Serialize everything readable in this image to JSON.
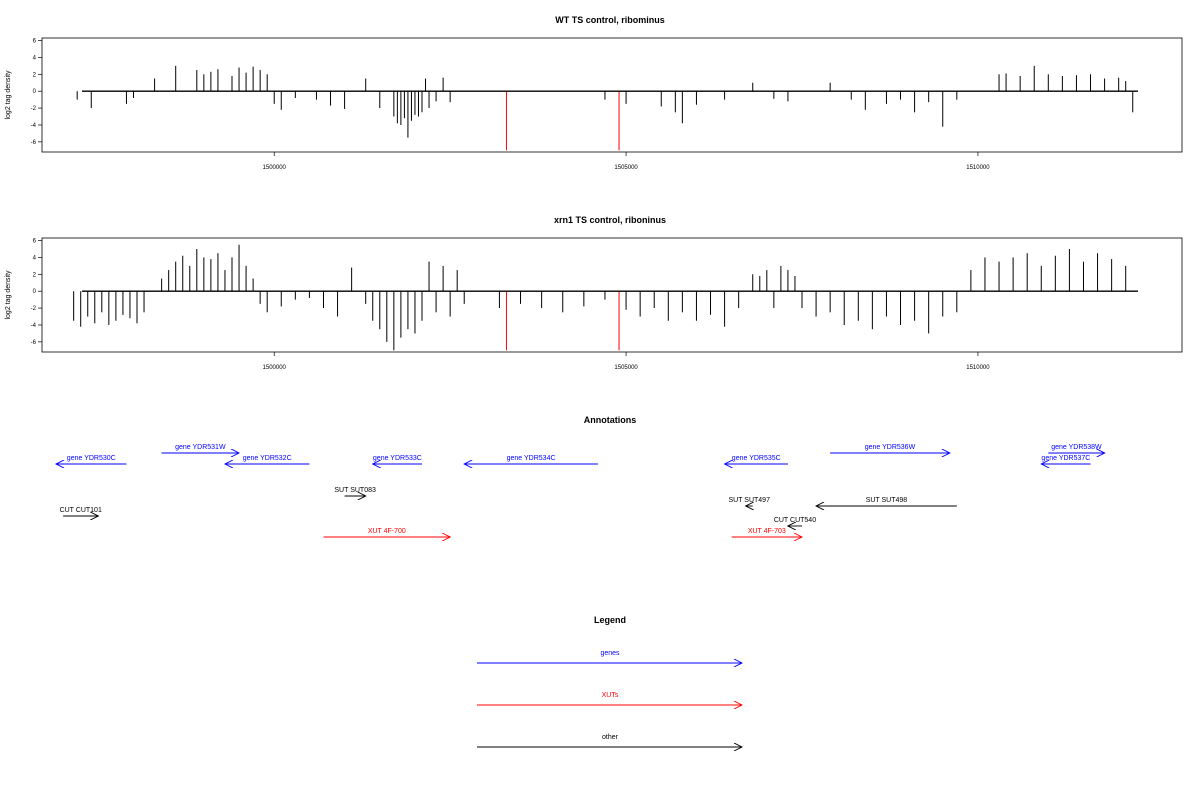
{
  "chart_data": [
    {
      "type": "bar",
      "title": "WT TS control, ribominus",
      "ylabel": "log2 tag density",
      "xlim": [
        1496700,
        1512900
      ],
      "ylim": [
        -7.2,
        6.3
      ],
      "yticks": [
        6,
        4,
        2,
        0,
        -2,
        -4,
        -6
      ],
      "xticks": [
        1500000,
        1505000,
        1510000
      ],
      "xtick_labels": [
        "1500000",
        "1505000",
        "1510000"
      ],
      "grid": false,
      "series": [
        {
          "color": "#000000",
          "x": [
            1497200,
            1497400,
            1497900,
            1498000,
            1498300,
            1498600,
            1498900,
            1499000,
            1499100,
            1499200,
            1499400,
            1499500,
            1499600,
            1499700,
            1499800,
            1499900,
            1500000,
            1500100,
            1500300,
            1500600,
            1500800,
            1501000,
            1501300,
            1501500,
            1501700,
            1501750,
            1501800,
            1501850,
            1501900,
            1501950,
            1502000,
            1502050,
            1502100,
            1502150,
            1502200,
            1502300,
            1502400,
            1502500,
            1504700,
            1505000,
            1505500,
            1505700,
            1505800,
            1506000,
            1506400,
            1506800,
            1507100,
            1507300,
            1507900,
            1508200,
            1508400,
            1508700,
            1508900,
            1509100,
            1509300,
            1509500,
            1509700,
            1510300,
            1510400,
            1510600,
            1510800,
            1511000,
            1511200,
            1511400,
            1511600,
            1511800,
            1512000,
            1512100,
            1512200
          ],
          "values": [
            -1.0,
            -2.0,
            -1.5,
            -0.8,
            1.5,
            3.0,
            2.5,
            2.0,
            2.3,
            2.6,
            1.8,
            2.8,
            2.2,
            2.9,
            2.5,
            2.0,
            -1.5,
            -2.2,
            -0.8,
            -1.0,
            -1.7,
            -2.1,
            1.5,
            -2.0,
            -3.0,
            -3.8,
            -4.0,
            -3.2,
            -5.5,
            -3.5,
            -2.8,
            -3.0,
            -2.5,
            1.5,
            -2.0,
            -1.2,
            1.6,
            -1.3,
            -1.0,
            -1.5,
            -1.8,
            -2.5,
            -3.8,
            -1.6,
            -1.0,
            1.0,
            -0.9,
            -1.2,
            1.0,
            -1.0,
            -2.2,
            -1.5,
            -1.0,
            -2.5,
            -1.3,
            -4.2,
            -1.0,
            2.0,
            2.1,
            1.8,
            3.0,
            2.0,
            1.8,
            1.9,
            2.0,
            1.5,
            1.6,
            1.2,
            -2.5
          ]
        },
        {
          "color": "#ff0000",
          "x": [
            1503300,
            1504900
          ],
          "values": [
            -7.0,
            -7.0
          ]
        }
      ]
    },
    {
      "type": "bar",
      "title": "xrn1 TS control, riboninus",
      "ylabel": "log2 tag density",
      "xlim": [
        1496700,
        1512900
      ],
      "ylim": [
        -7.2,
        6.3
      ],
      "yticks": [
        6,
        4,
        2,
        0,
        -2,
        -4,
        -6
      ],
      "xticks": [
        1500000,
        1505000,
        1510000
      ],
      "xtick_labels": [
        "1500000",
        "1505000",
        "1510000"
      ],
      "grid": false,
      "series": [
        {
          "color": "#000000",
          "x": [
            1497150,
            1497250,
            1497350,
            1497450,
            1497550,
            1497650,
            1497750,
            1497850,
            1497950,
            1498050,
            1498150,
            1498400,
            1498500,
            1498600,
            1498700,
            1498800,
            1498900,
            1499000,
            1499100,
            1499200,
            1499300,
            1499400,
            1499500,
            1499600,
            1499700,
            1499800,
            1499900,
            1500100,
            1500300,
            1500500,
            1500700,
            1500900,
            1501100,
            1501300,
            1501400,
            1501500,
            1501600,
            1501700,
            1501800,
            1501900,
            1502000,
            1502100,
            1502200,
            1502300,
            1502400,
            1502500,
            1502600,
            1502700,
            1503200,
            1503500,
            1503800,
            1504100,
            1504400,
            1504700,
            1505000,
            1505200,
            1505400,
            1505600,
            1505800,
            1506000,
            1506200,
            1506400,
            1506600,
            1506800,
            1506900,
            1507000,
            1507100,
            1507200,
            1507300,
            1507400,
            1507500,
            1507700,
            1507900,
            1508100,
            1508300,
            1508500,
            1508700,
            1508900,
            1509100,
            1509300,
            1509500,
            1509700,
            1509900,
            1510100,
            1510300,
            1510500,
            1510700,
            1510900,
            1511100,
            1511300,
            1511500,
            1511700,
            1511900,
            1512100
          ],
          "values": [
            -3.5,
            -4.2,
            -3.0,
            -3.8,
            -2.5,
            -4.0,
            -3.5,
            -2.8,
            -3.2,
            -3.8,
            -2.5,
            1.5,
            2.5,
            3.5,
            4.2,
            3.0,
            5.0,
            4.0,
            3.8,
            4.5,
            2.5,
            4.0,
            5.5,
            3.0,
            1.5,
            -1.5,
            -2.5,
            -1.8,
            -1.0,
            -0.8,
            -2.0,
            -3.0,
            2.8,
            -1.5,
            -3.5,
            -4.5,
            -6.0,
            -7.0,
            -5.5,
            -4.5,
            -5.0,
            -3.5,
            3.5,
            -2.5,
            3.0,
            -3.0,
            2.5,
            -1.5,
            -2.0,
            -1.5,
            -2.0,
            -2.5,
            -1.8,
            -1.0,
            -2.2,
            -3.0,
            -2.0,
            -3.5,
            -2.5,
            -3.5,
            -2.8,
            -4.2,
            -2.0,
            2.0,
            1.8,
            2.5,
            -2.0,
            3.0,
            2.5,
            1.8,
            -2.0,
            -3.0,
            -2.5,
            -4.0,
            -3.5,
            -4.5,
            -3.0,
            -4.0,
            -3.5,
            -5.0,
            -3.0,
            -2.5,
            2.5,
            4.0,
            3.5,
            4.0,
            4.5,
            3.0,
            4.2,
            5.0,
            3.5,
            4.5,
            3.8,
            3.0
          ]
        },
        {
          "color": "#ff0000",
          "x": [
            1503300,
            1504900
          ],
          "values": [
            -7.0,
            -7.0
          ]
        }
      ]
    }
  ],
  "annotations": {
    "title": "Annotations",
    "items": [
      {
        "label": "gene YDR530C",
        "color": "#0000ff",
        "start": 1497900,
        "end": 1496900,
        "row": 1
      },
      {
        "label": "gene YDR531W",
        "color": "#0000ff",
        "start": 1498400,
        "end": 1499500,
        "row": 0
      },
      {
        "label": "gene YDR532C",
        "color": "#0000ff",
        "start": 1500500,
        "end": 1499300,
        "row": 1
      },
      {
        "label": "gene YDR533C",
        "color": "#0000ff",
        "start": 1502100,
        "end": 1501400,
        "row": 1
      },
      {
        "label": "gene YDR534C",
        "color": "#0000ff",
        "start": 1504600,
        "end": 1502700,
        "row": 1
      },
      {
        "label": "gene YDR535C",
        "color": "#0000ff",
        "start": 1507300,
        "end": 1506400,
        "row": 1
      },
      {
        "label": "gene YDR536W",
        "color": "#0000ff",
        "start": 1507900,
        "end": 1509600,
        "row": 0
      },
      {
        "label": "gene YDR537C",
        "color": "#0000ff",
        "start": 1511600,
        "end": 1510900,
        "row": 1
      },
      {
        "label": "gene YDR538W",
        "color": "#0000ff",
        "start": 1511000,
        "end": 1511800,
        "row": 0
      },
      {
        "label": "SUT SUT083",
        "color": "#000000",
        "start": 1501000,
        "end": 1501300,
        "row": 3
      },
      {
        "label": "SUT SUT497",
        "color": "#000000",
        "start": 1506800,
        "end": 1506700,
        "row": 4
      },
      {
        "label": "SUT SUT498",
        "color": "#000000",
        "start": 1509700,
        "end": 1507700,
        "row": 4
      },
      {
        "label": "CUT CUT101",
        "color": "#000000",
        "start": 1497000,
        "end": 1497500,
        "row": 5
      },
      {
        "label": "CUT CUT540",
        "color": "#000000",
        "start": 1507500,
        "end": 1507300,
        "row": 6
      },
      {
        "label": "XUT 4F-700",
        "color": "#ff0000",
        "start": 1500700,
        "end": 1502500,
        "row": 7
      },
      {
        "label": "XUT 4F-703",
        "color": "#ff0000",
        "start": 1506500,
        "end": 1507500,
        "row": 7
      }
    ]
  },
  "legend": {
    "title": "Legend",
    "items": [
      {
        "label": "genes",
        "color": "#0000ff"
      },
      {
        "label": "XUTs",
        "color": "#ff0000"
      },
      {
        "label": "other",
        "color": "#000000"
      }
    ]
  }
}
